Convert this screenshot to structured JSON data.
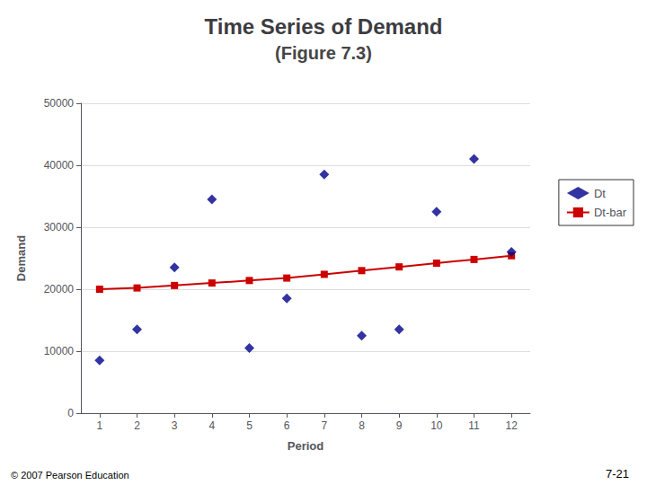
{
  "chart_data": {
    "type": "scatter",
    "title": "Time Series of Demand",
    "subtitle": "(Figure 7.3)",
    "annotations": [
      "© 2007 Pearson Education",
      "7-21"
    ],
    "xlabel": "Period",
    "ylabel": "Demand",
    "xlim": [
      0.5,
      12.5
    ],
    "xticks": [
      1,
      2,
      3,
      4,
      5,
      6,
      7,
      8,
      9,
      10,
      11,
      12
    ],
    "ylim": [
      0,
      50000
    ],
    "yticks": [
      0,
      10000,
      20000,
      30000,
      40000,
      50000
    ],
    "grid": true,
    "legend": "right",
    "series": [
      {
        "name": "Dt",
        "type": "scatter",
        "marker": "diamond",
        "color": "#00008B",
        "x": [
          1,
          2,
          3,
          4,
          5,
          6,
          7,
          8,
          9,
          10,
          11,
          12
        ],
        "values": [
          8500,
          13500,
          23500,
          34500,
          10500,
          18500,
          38500,
          12500,
          13500,
          32500,
          41000,
          26000
        ]
      },
      {
        "name": "Dt-bar",
        "type": "line",
        "marker": "square",
        "color": "#CC0000",
        "x": [
          1,
          2,
          3,
          4,
          5,
          6,
          7,
          8,
          9,
          10,
          11,
          12
        ],
        "values": [
          20000,
          20200,
          20600,
          21000,
          21400,
          21800,
          22400,
          23000,
          23600,
          24200,
          24800,
          25400
        ]
      }
    ]
  }
}
